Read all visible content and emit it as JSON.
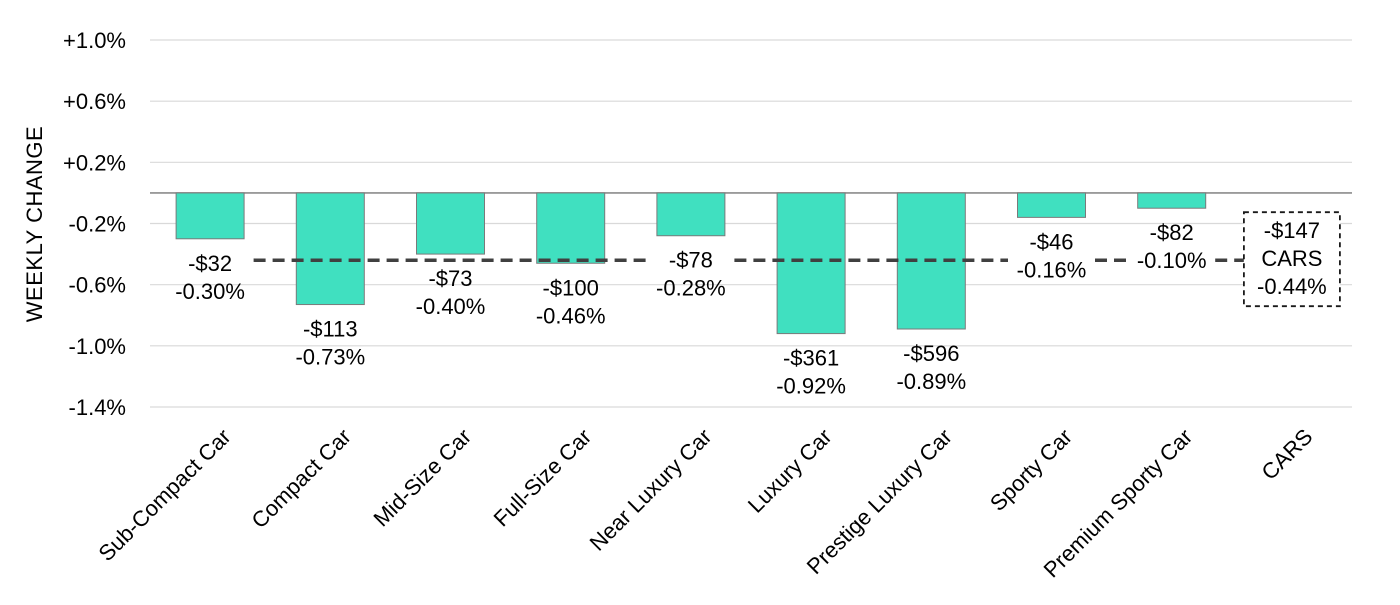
{
  "chart_data": {
    "type": "bar",
    "ylabel": "WEEKLY CHANGE",
    "ylim": [
      -1.4,
      1.0
    ],
    "y_ticks": [
      1.0,
      0.6,
      0.2,
      -0.2,
      -0.6,
      -1.0,
      -1.4
    ],
    "y_tick_labels": [
      "+1.0%",
      "+0.6%",
      "+0.2%",
      "-0.2%",
      "-0.6%",
      "-1.0%",
      "-1.4%"
    ],
    "grid": true,
    "categories": [
      "Sub-Compact Car",
      "Compact Car",
      "Mid-Size Car",
      "Full-Size Car",
      "Near Luxury Car",
      "Luxury Car",
      "Prestige Luxury Car",
      "Sporty Car",
      "Premium Sporty Car",
      "CARS"
    ],
    "values": [
      -0.3,
      -0.73,
      -0.4,
      -0.46,
      -0.28,
      -0.92,
      -0.89,
      -0.16,
      -0.1,
      null
    ],
    "dollar_labels": [
      "-$32",
      "-$113",
      "-$73",
      "-$100",
      "-$78",
      "-$361",
      "-$596",
      "-$46",
      "-$82",
      "-$147"
    ],
    "percent_labels": [
      "-0.30%",
      "-0.73%",
      "-0.40%",
      "-0.46%",
      "-0.28%",
      "-0.92%",
      "-0.89%",
      "-0.16%",
      "-0.10%",
      "-0.44%"
    ],
    "reference_line": {
      "value": -0.44,
      "label_lines": [
        "-$147",
        "CARS",
        "-0.44%"
      ]
    },
    "colors": {
      "bar": "#40e0c0",
      "bar_border": "#7a7a7a",
      "grid": "#d9d9d9",
      "zero_line": "#8c8c8c",
      "reference_line": "#404040"
    }
  }
}
